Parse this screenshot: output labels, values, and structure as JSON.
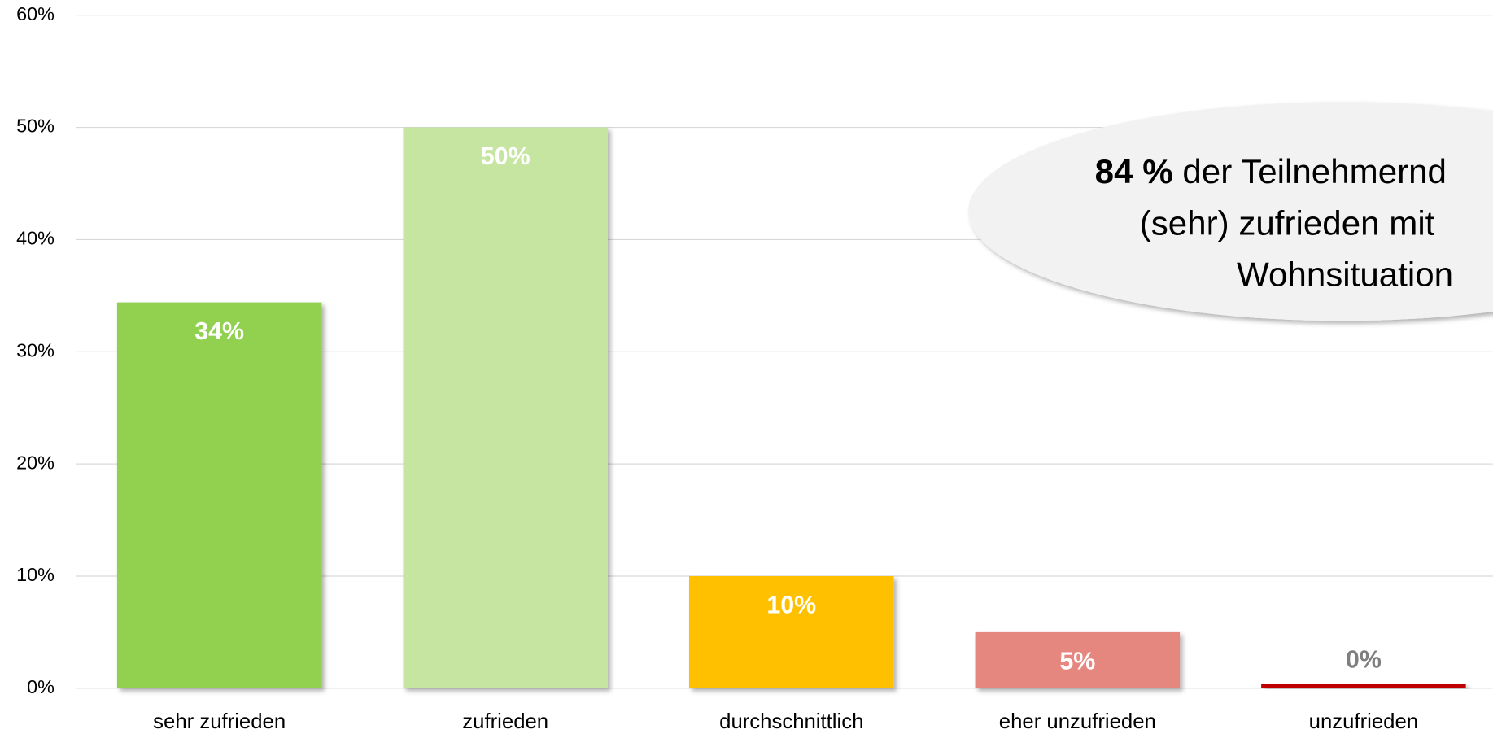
{
  "chart_data": {
    "type": "bar",
    "categories": [
      "sehr zufrieden",
      "zufrieden",
      "durchschnittlich",
      "eher unzufrieden",
      "unzufrieden"
    ],
    "values": [
      34.4,
      50,
      10,
      5,
      0.4
    ],
    "value_labels": [
      "34%",
      "50%",
      "10%",
      "5%",
      "0%"
    ],
    "colors": [
      "#92d050",
      "#c5e5a0",
      "#ffc000",
      "#e6877f",
      "#c00000"
    ],
    "ylim": [
      0,
      60
    ],
    "yticks": [
      {
        "value": 0,
        "label": "0%"
      },
      {
        "value": 10,
        "label": "10%"
      },
      {
        "value": 20,
        "label": "20%"
      },
      {
        "value": 30,
        "label": "30%"
      },
      {
        "value": 40,
        "label": "40%"
      },
      {
        "value": 50,
        "label": "50%"
      },
      {
        "value": 60,
        "label": "60%"
      }
    ],
    "grid": true,
    "annotation": {
      "bold": "84 %",
      "lines": [
        "der Teilnehmernd",
        "(sehr) zufrieden mit",
        "Wohnsituation"
      ]
    }
  }
}
